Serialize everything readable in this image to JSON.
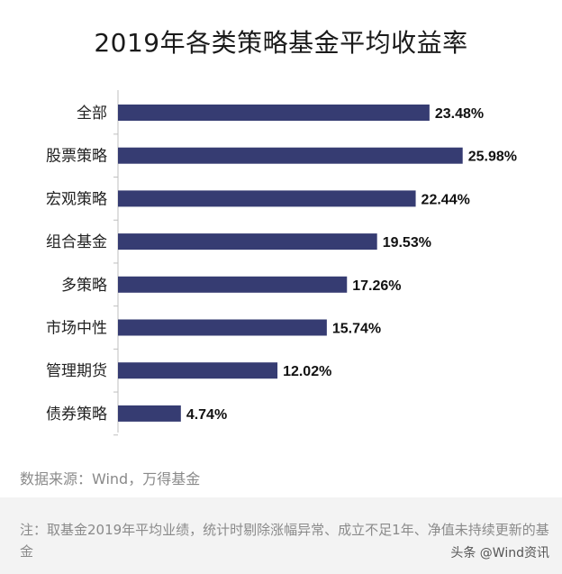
{
  "chart_data": {
    "type": "bar",
    "orientation": "horizontal",
    "title": "2019年各类策略基金平均收益率",
    "categories": [
      "全部",
      "股票策略",
      "宏观策略",
      "组合基金",
      "多策略",
      "市场中性",
      "管理期货",
      "债券策略"
    ],
    "values": [
      23.48,
      25.98,
      22.44,
      19.53,
      17.26,
      15.74,
      12.02,
      4.74
    ],
    "value_labels": [
      "23.48%",
      "25.98%",
      "22.44%",
      "19.53%",
      "17.26%",
      "15.74%",
      "12.02%",
      "4.74%"
    ],
    "xlim": [
      0,
      26
    ],
    "bar_color": "#363c72",
    "grid": false,
    "legend": "none"
  },
  "source": "数据来源：Wind，万得基金",
  "note": "注：取基金2019年平均业绩，统计时剔除涨幅异常、成立不足1年、净值未持续更新的基金",
  "watermark": "头条 @Wind资讯"
}
